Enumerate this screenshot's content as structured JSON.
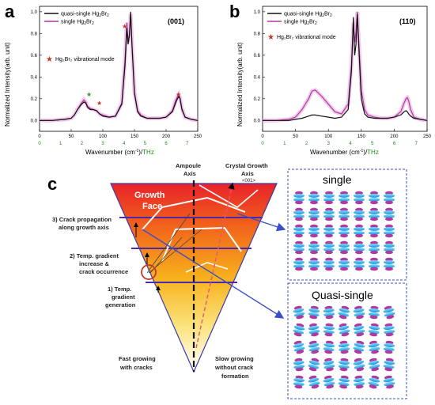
{
  "chart_data": [
    {
      "type": "line",
      "panel_label": "a",
      "orientation_tag": "(001)",
      "xlabel_prefix": "Wavenumber (cm",
      "xlabel_sup": "-1",
      "xlabel_mid": ")/",
      "xlabel_unit2": "THz",
      "ylabel": "Normalized Intensity(arb. unit)",
      "xlim": [
        0,
        250
      ],
      "ylim": [
        -0.1,
        1.05
      ],
      "x_ticks": [
        "0",
        "50",
        "100",
        "150",
        "200",
        "250"
      ],
      "y_ticks": [
        "0.0",
        "0.2",
        "0.4",
        "0.6",
        "0.8",
        "1.0"
      ],
      "thz_ticks": [
        "0",
        "1",
        "2",
        "3",
        "4",
        "5",
        "6",
        "7"
      ],
      "legend": [
        {
          "label_main": "quasi-single Hg",
          "label_sub1": "2",
          "label_mid": "Br",
          "label_sub2": "2",
          "color": "#111111"
        },
        {
          "label_main": "single Hg",
          "label_sub1": "2",
          "label_mid": "Br",
          "label_sub2": "2",
          "color": "#b03aa0"
        }
      ],
      "mode_label": "Hg₂Br₂ vibrational mode",
      "mode_star_color": "#c0392b",
      "green_star_color": "#2e9a2e",
      "series": [
        {
          "name": "quasi-single Hg2Br2",
          "color": "#111111",
          "x": [
            0,
            20,
            40,
            50,
            55,
            60,
            65,
            70,
            73,
            76,
            80,
            85,
            90,
            95,
            100,
            110,
            120,
            130,
            135,
            138,
            140,
            142,
            144,
            146,
            150,
            155,
            160,
            170,
            180,
            190,
            200,
            210,
            215,
            218,
            220,
            222,
            225,
            230,
            240,
            250
          ],
          "y": [
            0.0,
            0.0,
            0.01,
            0.02,
            0.05,
            0.1,
            0.14,
            0.17,
            0.16,
            0.12,
            0.1,
            0.1,
            0.09,
            0.06,
            0.04,
            0.03,
            0.04,
            0.15,
            0.5,
            0.85,
            0.7,
            0.78,
            1.0,
            0.7,
            0.25,
            0.08,
            0.04,
            0.02,
            0.02,
            0.02,
            0.03,
            0.08,
            0.16,
            0.2,
            0.22,
            0.2,
            0.1,
            0.03,
            0.01,
            0.0
          ]
        },
        {
          "name": "single Hg2Br2",
          "color": "#b03aa0",
          "x": [
            0,
            20,
            40,
            50,
            55,
            60,
            65,
            70,
            73,
            76,
            80,
            85,
            90,
            95,
            100,
            110,
            120,
            130,
            135,
            138,
            140,
            142,
            144,
            146,
            150,
            155,
            160,
            170,
            180,
            190,
            200,
            210,
            215,
            218,
            220,
            222,
            225,
            230,
            240,
            250
          ],
          "y": [
            0.0,
            0.0,
            0.01,
            0.02,
            0.05,
            0.1,
            0.15,
            0.19,
            0.17,
            0.13,
            0.11,
            0.1,
            0.09,
            0.06,
            0.05,
            0.03,
            0.04,
            0.16,
            0.55,
            0.9,
            0.72,
            0.8,
            0.98,
            0.72,
            0.26,
            0.09,
            0.05,
            0.02,
            0.02,
            0.02,
            0.03,
            0.09,
            0.18,
            0.22,
            0.24,
            0.21,
            0.11,
            0.03,
            0.01,
            0.0
          ]
        }
      ]
    },
    {
      "type": "line",
      "panel_label": "b",
      "orientation_tag": "(110)",
      "xlabel_prefix": "Wavenumber (cm",
      "xlabel_sup": "-1",
      "xlabel_mid": ")/",
      "xlabel_unit2": "THz",
      "ylabel": "Normalized Intensity(arb. unit)",
      "xlim": [
        0,
        250
      ],
      "ylim": [
        -0.1,
        1.05
      ],
      "x_ticks": [
        "0",
        "50",
        "100",
        "150",
        "200",
        "250"
      ],
      "y_ticks": [
        "0.0",
        "0.2",
        "0.4",
        "0.6",
        "0.8",
        "1.0"
      ],
      "thz_ticks": [
        "0",
        "1",
        "2",
        "3",
        "4",
        "5",
        "6",
        "7"
      ],
      "legend": [
        {
          "label_main": "quasi-single Hg",
          "label_sub1": "2",
          "label_mid": "Br",
          "label_sub2": "2",
          "color": "#111111"
        },
        {
          "label_main": "single Hg",
          "label_sub1": "2",
          "label_mid": "Br",
          "label_sub2": "2",
          "color": "#b03aa0"
        }
      ],
      "mode_label": "Hg₂Br₂ vibrational mode",
      "mode_star_color": "#c0392b",
      "series": [
        {
          "name": "quasi-single Hg2Br2",
          "color": "#111111",
          "x": [
            0,
            20,
            40,
            50,
            60,
            70,
            75,
            80,
            90,
            100,
            110,
            120,
            130,
            135,
            138,
            140,
            142,
            144,
            146,
            150,
            155,
            160,
            170,
            180,
            190,
            200,
            210,
            215,
            218,
            220,
            222,
            225,
            230,
            240,
            250
          ],
          "y": [
            0.0,
            0.0,
            0.0,
            0.01,
            0.02,
            0.04,
            0.05,
            0.05,
            0.04,
            0.03,
            0.02,
            0.03,
            0.1,
            0.45,
            0.95,
            0.6,
            0.7,
            0.98,
            0.7,
            0.2,
            0.06,
            0.03,
            0.02,
            0.02,
            0.02,
            0.03,
            0.05,
            0.08,
            0.09,
            0.08,
            0.06,
            0.04,
            0.02,
            0.01,
            0.0
          ]
        },
        {
          "name": "single Hg2Br2",
          "color": "#b03aa0",
          "x": [
            0,
            20,
            40,
            50,
            60,
            70,
            75,
            80,
            90,
            100,
            110,
            120,
            130,
            135,
            138,
            140,
            142,
            144,
            146,
            150,
            155,
            160,
            170,
            180,
            190,
            200,
            210,
            215,
            218,
            220,
            222,
            225,
            230,
            240,
            250
          ],
          "y": [
            0.0,
            0.0,
            0.01,
            0.03,
            0.1,
            0.2,
            0.27,
            0.28,
            0.22,
            0.15,
            0.08,
            0.06,
            0.15,
            0.5,
            0.9,
            0.72,
            0.82,
            1.0,
            0.75,
            0.28,
            0.1,
            0.05,
            0.03,
            0.02,
            0.02,
            0.03,
            0.08,
            0.16,
            0.2,
            0.21,
            0.18,
            0.1,
            0.03,
            0.01,
            0.0
          ]
        }
      ]
    }
  ],
  "diagram": {
    "panel_label": "c",
    "growth_face_1": "Growth",
    "growth_face_2": "Face",
    "ampoule_axis_1": "Ampoule",
    "ampoule_axis_2": "Axis",
    "crystal_axis_1": "Crystal Growth",
    "crystal_axis_2": "Axis",
    "crystal_axis_3": "<001>",
    "step3_1": "3) Crack propagation",
    "step3_2": "along growth axis",
    "step2_1": "2) Temp. gradient",
    "step2_2": "increase &",
    "step2_3": "crack occurrence",
    "step1_1": "1) Temp.",
    "step1_2": "gradient",
    "step1_3": "generation",
    "fast_1": "Fast growing",
    "fast_2": "with cracks",
    "slow_1": "Slow growing",
    "slow_2": "without crack",
    "slow_3": "formation",
    "box_single": "single",
    "box_quasi": "Quasi-single"
  }
}
